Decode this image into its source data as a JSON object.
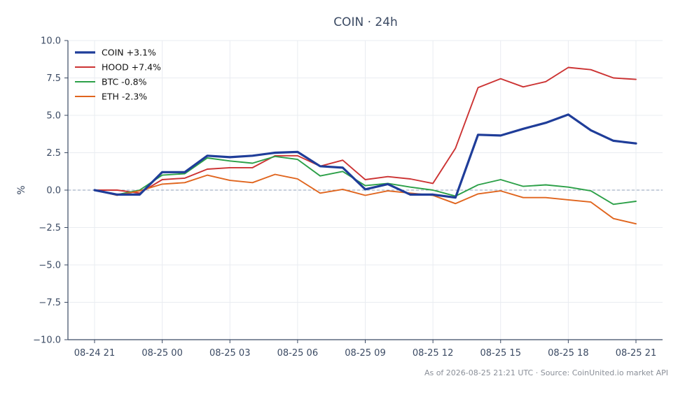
{
  "chart_data": {
    "type": "line",
    "title": "COIN · 24h",
    "xlabel": "",
    "ylabel": "%",
    "ylim": [
      -10,
      10
    ],
    "yticks": [
      10.0,
      7.5,
      5.0,
      2.5,
      0.0,
      -2.5,
      -5.0,
      -7.5,
      -10.0
    ],
    "ytick_labels": [
      "10.0",
      "7.5",
      "5.0",
      "2.5",
      "0.0",
      "−2.5",
      "−5.0",
      "−7.5",
      "−10.0"
    ],
    "x": [
      "2026-08-24 21:00",
      "2026-08-24 22:00",
      "2026-08-24 23:00",
      "2026-08-25 00:00",
      "2026-08-25 01:00",
      "2026-08-25 02:00",
      "2026-08-25 03:00",
      "2026-08-25 04:00",
      "2026-08-25 05:00",
      "2026-08-25 06:00",
      "2026-08-25 07:00",
      "2026-08-25 08:00",
      "2026-08-25 09:00",
      "2026-08-25 10:00",
      "2026-08-25 11:00",
      "2026-08-25 12:00",
      "2026-08-25 13:00",
      "2026-08-25 14:00",
      "2026-08-25 15:00",
      "2026-08-25 16:00",
      "2026-08-25 17:00",
      "2026-08-25 18:00",
      "2026-08-25 19:00",
      "2026-08-25 20:00",
      "2026-08-25 21:00"
    ],
    "xticks": [
      "2026-08-24 21:00",
      "2026-08-25 00:00",
      "2026-08-25 03:00",
      "2026-08-25 06:00",
      "2026-08-25 09:00",
      "2026-08-25 12:00",
      "2026-08-25 15:00",
      "2026-08-25 18:00",
      "2026-08-25 21:00"
    ],
    "xtick_labels": [
      "08-24 21",
      "08-25 00",
      "08-25 03",
      "08-25 06",
      "08-25 09",
      "08-25 12",
      "08-25 15",
      "08-25 18",
      "08-25 21"
    ],
    "series": [
      {
        "name": "COIN +3.1%",
        "color": "#1f3d99",
        "values": [
          0.0,
          -0.3,
          -0.3,
          1.2,
          1.2,
          2.3,
          2.2,
          2.3,
          2.5,
          2.55,
          1.6,
          1.5,
          0.05,
          0.4,
          -0.3,
          -0.3,
          -0.5,
          3.7,
          3.65,
          4.1,
          4.5,
          5.05,
          4.0,
          3.3,
          3.12
        ]
      },
      {
        "name": "HOOD +7.4%",
        "color": "#cc3333",
        "values": [
          0.0,
          0.0,
          -0.2,
          0.7,
          0.8,
          1.4,
          1.5,
          1.5,
          2.3,
          2.3,
          1.6,
          2.0,
          0.7,
          0.9,
          0.75,
          0.45,
          2.8,
          6.85,
          7.45,
          6.9,
          7.25,
          8.2,
          8.05,
          7.5,
          7.4
        ]
      },
      {
        "name": "BTC -0.8%",
        "color": "#2ca048",
        "values": [
          0.0,
          -0.3,
          0.0,
          1.0,
          1.1,
          2.15,
          1.95,
          1.8,
          2.25,
          2.05,
          0.95,
          1.25,
          0.3,
          0.45,
          0.2,
          0.0,
          -0.4,
          0.35,
          0.7,
          0.25,
          0.35,
          0.2,
          -0.05,
          -0.95,
          -0.75
        ]
      },
      {
        "name": "ETH -2.3%",
        "color": "#e0651e",
        "values": [
          0.0,
          -0.35,
          -0.05,
          0.4,
          0.5,
          1.0,
          0.65,
          0.5,
          1.05,
          0.75,
          -0.2,
          0.05,
          -0.35,
          -0.05,
          -0.2,
          -0.35,
          -0.9,
          -0.25,
          -0.05,
          -0.5,
          -0.5,
          -0.65,
          -0.8,
          -1.9,
          -2.25
        ]
      }
    ],
    "reference_line": {
      "y": 0.0,
      "style": "dashed",
      "color": "#8fa0b8"
    },
    "grid": true,
    "legend": "top-left",
    "footer": "As of 2026-08-25 21:21 UTC · Source: CoinUnited.io market API"
  }
}
